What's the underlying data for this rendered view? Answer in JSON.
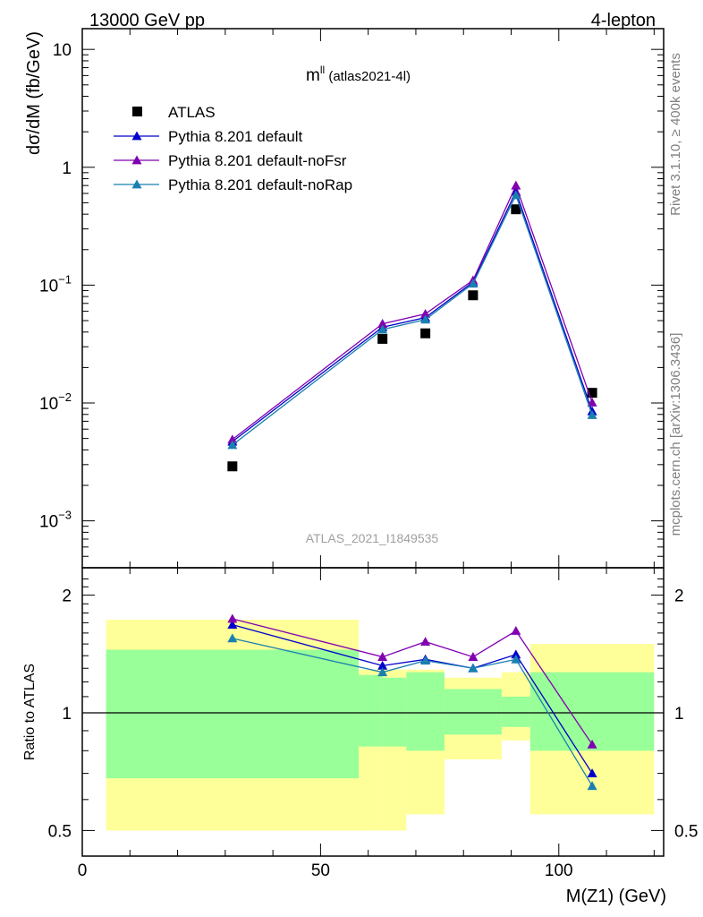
{
  "header": {
    "beam": "13000 GeV pp",
    "process": "4-lepton"
  },
  "side": {
    "rivet": "Rivet 3.1.10, ≥ 400k events",
    "mcplots": "mcplots.cern.ch [arXiv:1306.3436]"
  },
  "plot_title_main": "m",
  "plot_title_sup": "ll",
  "plot_title_sub": " (atlas2021-4l)",
  "watermark": "ATLAS_2021_I1849535",
  "chart_data": [
    {
      "type": "scatter",
      "ylabel": "dσ/dM (fb/GeV)",
      "yscale": "log",
      "ylim": [
        0.0004,
        15
      ],
      "xlim": [
        0,
        122
      ],
      "ytick_labels": [
        {
          "value": 10,
          "mant": "10",
          "exp": ""
        },
        {
          "value": 1,
          "mant": "1",
          "exp": ""
        },
        {
          "value": 0.1,
          "mant": "10",
          "exp": "−1"
        },
        {
          "value": 0.01,
          "mant": "10",
          "exp": "−2"
        },
        {
          "value": 0.001,
          "mant": "10",
          "exp": "−3"
        }
      ],
      "legend_position": "top-left",
      "series": [
        {
          "name": "ATLAS",
          "color": "#000000",
          "marker": "square",
          "x": [
            31.5,
            63,
            72,
            82,
            91,
            107
          ],
          "y": [
            0.0029,
            0.035,
            0.039,
            0.082,
            0.44,
            0.0122
          ]
        },
        {
          "name": "Pythia 8.201 default",
          "color": "#0000cc",
          "marker": "triangle",
          "x": [
            31.5,
            63,
            72,
            82,
            91,
            107
          ],
          "y": [
            0.0047,
            0.044,
            0.053,
            0.106,
            0.62,
            0.0085
          ]
        },
        {
          "name": "Pythia 8.201 default-noFsr",
          "color": "#8000b0",
          "marker": "triangle",
          "x": [
            31.5,
            63,
            72,
            82,
            91,
            107
          ],
          "y": [
            0.0049,
            0.047,
            0.057,
            0.11,
            0.7,
            0.0101
          ]
        },
        {
          "name": "Pythia 8.201 default-noRap",
          "color": "#1a80b0",
          "marker": "triangle",
          "x": [
            31.5,
            63,
            72,
            82,
            91,
            107
          ],
          "y": [
            0.0044,
            0.042,
            0.051,
            0.103,
            0.58,
            0.0079
          ]
        }
      ]
    },
    {
      "type": "scatter",
      "ylabel": "Ratio to ATLAS",
      "xlabel": "M(Z1) (GeV)",
      "yscale": "log",
      "ylim": [
        0.43,
        2.35
      ],
      "xlim": [
        0,
        122
      ],
      "xticks": [
        0,
        50,
        100
      ],
      "xtick_labels": [
        "0",
        "50",
        "100"
      ],
      "ytick_labels": [
        {
          "value": 2,
          "label": "2"
        },
        {
          "value": 1,
          "label": "1"
        },
        {
          "value": 0.5,
          "label": "0.5"
        }
      ],
      "bands": [
        {
          "x0": 5,
          "x1": 58,
          "yellow": [
            0.5,
            1.73
          ],
          "green": [
            0.68,
            1.45
          ]
        },
        {
          "x0": 58,
          "x1": 63,
          "yellow": [
            0.5,
            1.29
          ],
          "green": [
            0.82,
            1.25
          ]
        },
        {
          "x0": 63,
          "x1": 68,
          "yellow": [
            0.5,
            1.29
          ],
          "green": [
            0.82,
            1.23
          ]
        },
        {
          "x0": 68,
          "x1": 76,
          "yellow": [
            0.55,
            1.29
          ],
          "green": [
            0.8,
            1.27
          ]
        },
        {
          "x0": 76,
          "x1": 88,
          "yellow": [
            0.76,
            1.23
          ],
          "green": [
            0.88,
            1.15
          ]
        },
        {
          "x0": 88,
          "x1": 94,
          "yellow": [
            0.85,
            1.27
          ],
          "green": [
            0.92,
            1.1
          ]
        },
        {
          "x0": 94,
          "x1": 120,
          "yellow": [
            0.55,
            1.5
          ],
          "green": [
            0.8,
            1.27
          ]
        }
      ],
      "series": [
        {
          "name": "Pythia 8.201 default",
          "color": "#0000cc",
          "x": [
            31.5,
            63,
            72,
            82,
            91,
            107
          ],
          "y": [
            1.68,
            1.32,
            1.37,
            1.3,
            1.41,
            0.7
          ]
        },
        {
          "name": "Pythia 8.201 default-noFsr",
          "color": "#8000b0",
          "x": [
            31.5,
            63,
            72,
            82,
            91,
            107
          ],
          "y": [
            1.74,
            1.39,
            1.52,
            1.39,
            1.62,
            0.83
          ]
        },
        {
          "name": "Pythia 8.201 default-noRap",
          "color": "#1a80b0",
          "x": [
            31.5,
            63,
            72,
            82,
            91,
            107
          ],
          "y": [
            1.55,
            1.27,
            1.36,
            1.3,
            1.37,
            0.65
          ]
        }
      ]
    }
  ]
}
